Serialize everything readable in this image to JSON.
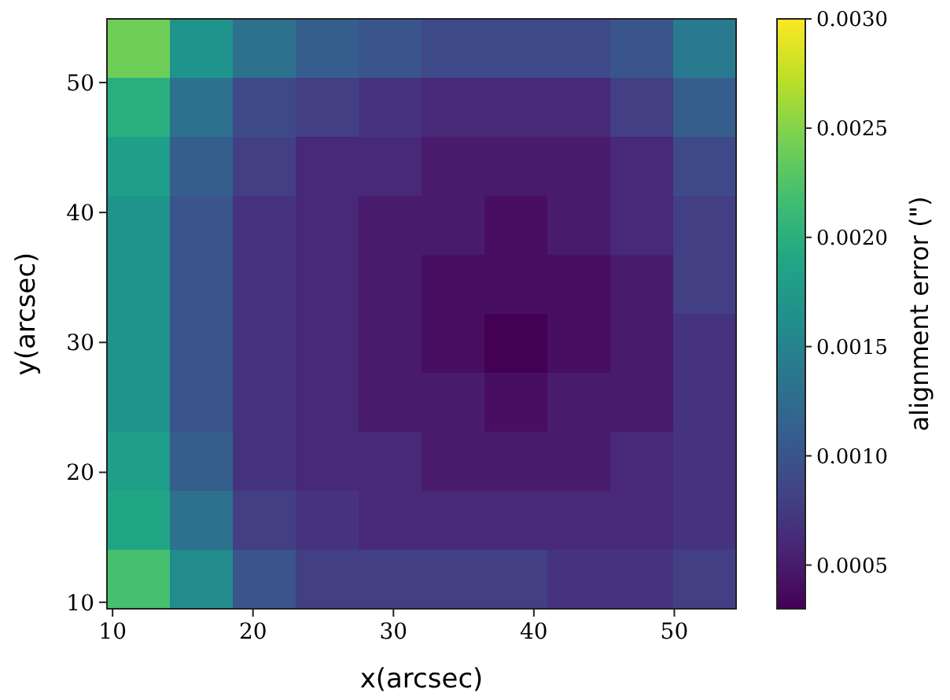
{
  "chart_data": {
    "type": "heatmap",
    "xlabel": "x(arcsec)",
    "ylabel": "y(arcsec)",
    "clabel": "alignment error (\")",
    "x": [
      11.84,
      16.32,
      20.8,
      25.28,
      29.76,
      34.24,
      38.72,
      43.2,
      47.68,
      52.16
    ],
    "y": [
      52.63,
      48.09,
      43.55,
      39.01,
      34.47,
      29.93,
      25.39,
      20.85,
      16.31,
      11.77
    ],
    "xlim": [
      9.6,
      54.4
    ],
    "xticks": [
      10,
      20,
      30,
      40,
      50
    ],
    "ylim": [
      9.5,
      54.9
    ],
    "yticks": [
      10,
      20,
      30,
      40,
      50
    ],
    "clim": [
      0.0003,
      0.003
    ],
    "cticks": [
      0.0005,
      {
        "value": 0.001,
        "label": "0.0010"
      },
      0.0015,
      {
        "value": 0.002,
        "label": "0.0020"
      },
      0.0025,
      {
        "value": 0.003,
        "label": "0.0030"
      }
    ],
    "cells": [
      [
        0.0024,
        0.0017,
        0.0013,
        0.0011,
        0.001,
        0.0009,
        0.0009,
        0.0009,
        0.001,
        0.0014
      ],
      [
        0.002,
        0.0013,
        0.0009,
        0.0008,
        0.0007,
        0.0006,
        0.0006,
        0.0006,
        0.0008,
        0.0011
      ],
      [
        0.0018,
        0.0011,
        0.0008,
        0.0006,
        0.0006,
        0.0005,
        0.0005,
        0.0005,
        0.0006,
        0.0009
      ],
      [
        0.0017,
        0.001,
        0.0007,
        0.0006,
        0.0005,
        0.0005,
        0.0004,
        0.0005,
        0.0006,
        0.0008
      ],
      [
        0.0017,
        0.001,
        0.0007,
        0.0006,
        0.0005,
        0.0004,
        0.0004,
        0.0004,
        0.0005,
        0.0008
      ],
      [
        0.0017,
        0.001,
        0.0007,
        0.0006,
        0.0005,
        0.0004,
        0.0003,
        0.0004,
        0.0005,
        0.0007
      ],
      [
        0.0017,
        0.001,
        0.0007,
        0.0006,
        0.0005,
        0.0005,
        0.0004,
        0.0005,
        0.0005,
        0.0007
      ],
      [
        0.0018,
        0.0011,
        0.0007,
        0.0006,
        0.0006,
        0.0005,
        0.0005,
        0.0005,
        0.0006,
        0.0007
      ],
      [
        0.0019,
        0.0013,
        0.0008,
        0.0007,
        0.0006,
        0.0006,
        0.0006,
        0.0006,
        0.0006,
        0.0007
      ],
      [
        0.0022,
        0.0016,
        0.001,
        0.0008,
        0.0008,
        0.0008,
        0.0008,
        0.0007,
        0.0007,
        0.0008
      ]
    ]
  }
}
